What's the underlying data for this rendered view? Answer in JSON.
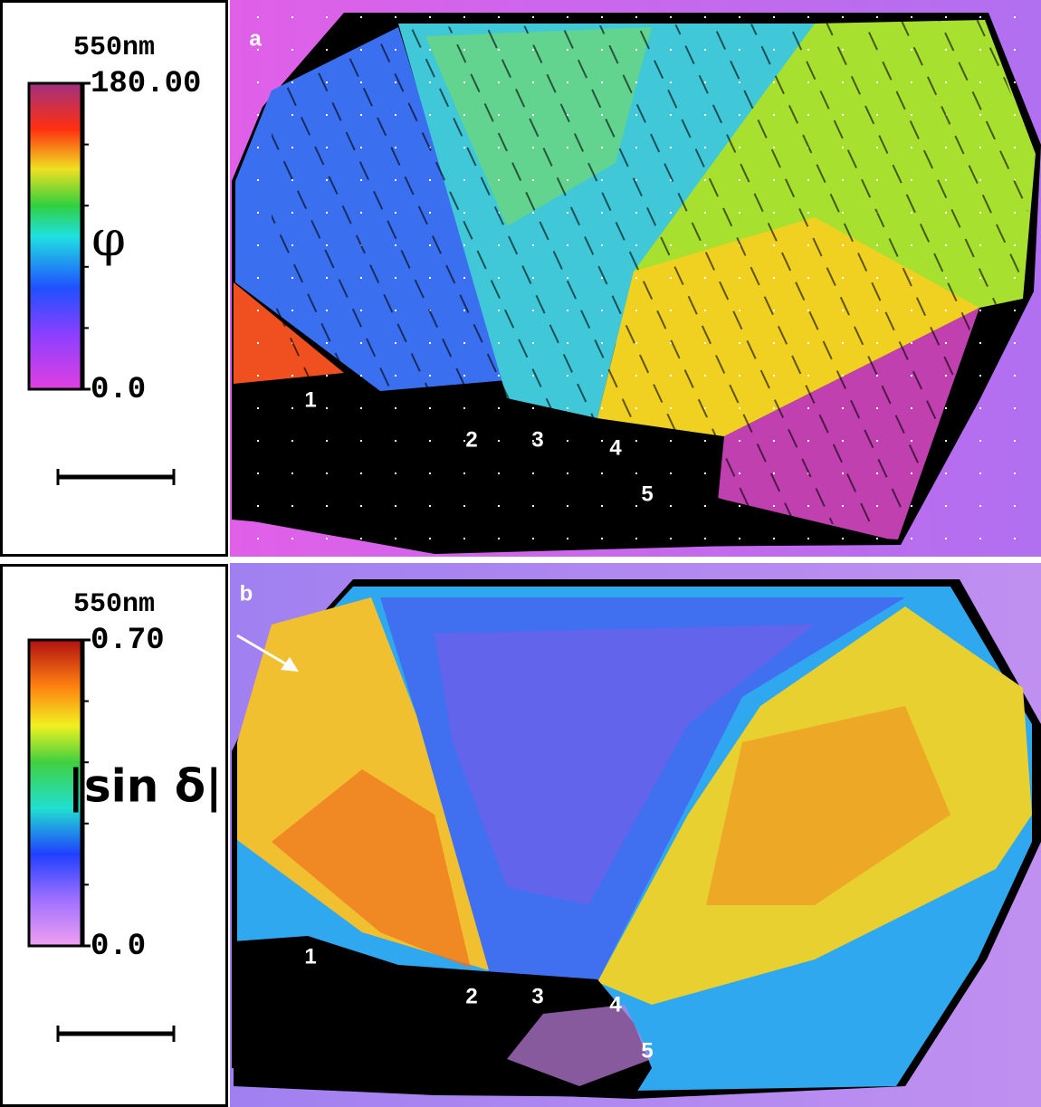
{
  "panels": [
    {
      "letter": "a",
      "wavelength": "550nm",
      "quantity": "φ",
      "colorbar": {
        "lim": [
          0,
          180
        ],
        "ticks": [
          {
            "value": 0,
            "label": "0.0"
          },
          {
            "value": 180,
            "label": "180.00"
          }
        ],
        "minor_ticks": [
          36,
          72,
          108,
          144
        ]
      },
      "labels": [
        "1",
        "2",
        "3",
        "4",
        "5"
      ]
    },
    {
      "letter": "b",
      "wavelength": "550nm",
      "quantity": "|sin δ|",
      "colorbar": {
        "lim": [
          0,
          0.7
        ],
        "ticks": [
          {
            "value": 0,
            "label": "0.0"
          },
          {
            "value": 0.7,
            "label": "0.70"
          }
        ],
        "minor_ticks": [
          0.14,
          0.28,
          0.42,
          0.56
        ]
      },
      "labels": [
        "1",
        "2",
        "3",
        "4",
        "5"
      ]
    }
  ]
}
